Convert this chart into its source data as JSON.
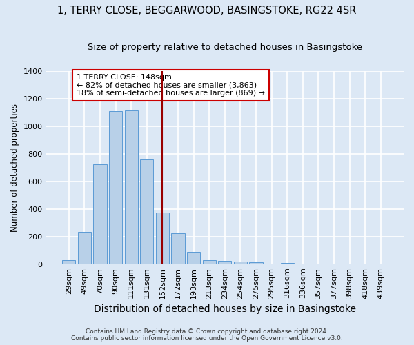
{
  "title_line1": "1, TERRY CLOSE, BEGGARWOOD, BASINGSTOKE, RG22 4SR",
  "title_line2": "Size of property relative to detached houses in Basingstoke",
  "xlabel": "Distribution of detached houses by size in Basingstoke",
  "ylabel": "Number of detached properties",
  "categories": [
    "29sqm",
    "49sqm",
    "70sqm",
    "90sqm",
    "111sqm",
    "131sqm",
    "152sqm",
    "172sqm",
    "193sqm",
    "213sqm",
    "234sqm",
    "254sqm",
    "275sqm",
    "295sqm",
    "316sqm",
    "336sqm",
    "357sqm",
    "377sqm",
    "398sqm",
    "418sqm",
    "439sqm"
  ],
  "values": [
    30,
    235,
    725,
    1110,
    1115,
    760,
    375,
    225,
    90,
    30,
    25,
    20,
    15,
    0,
    10,
    0,
    0,
    0,
    0,
    0,
    0
  ],
  "bar_color": "#b8d0e8",
  "bar_edge_color": "#5b9bd5",
  "vline_x": 6.0,
  "vline_color": "#990000",
  "annotation_text": "1 TERRY CLOSE: 148sqm\n← 82% of detached houses are smaller (3,863)\n18% of semi-detached houses are larger (869) →",
  "annotation_box_color": "#ffffff",
  "annotation_box_edge": "#cc0000",
  "footnote": "Contains HM Land Registry data © Crown copyright and database right 2024.\nContains public sector information licensed under the Open Government Licence v3.0.",
  "ylim": [
    0,
    1400
  ],
  "yticks": [
    0,
    200,
    400,
    600,
    800,
    1000,
    1200,
    1400
  ],
  "background_color": "#dce8f5",
  "plot_bg_color": "#dce8f5",
  "grid_color": "#ffffff",
  "title_fontsize": 10.5,
  "subtitle_fontsize": 9.5,
  "xlabel_fontsize": 10,
  "ylabel_fontsize": 8.5,
  "tick_fontsize": 8,
  "annot_fontsize": 8,
  "footnote_fontsize": 6.5
}
